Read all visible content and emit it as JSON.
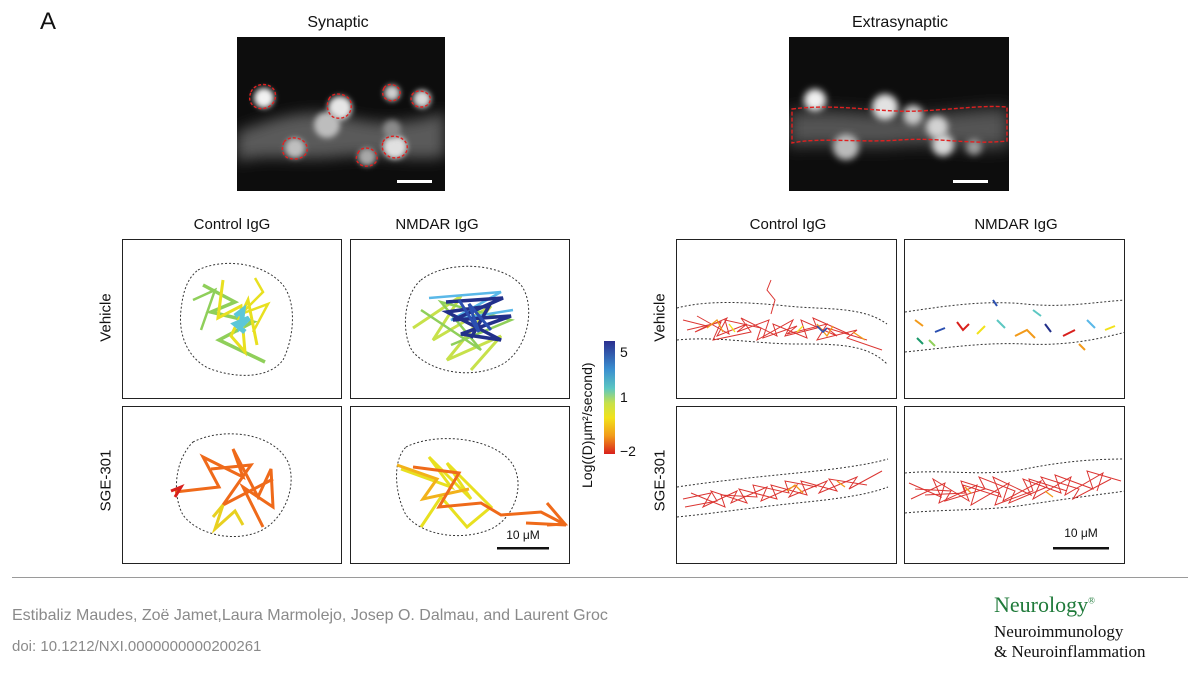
{
  "figure": {
    "panel_letter": "A",
    "sections": [
      {
        "title": "Synaptic"
      },
      {
        "title": "Extrasynaptic"
      }
    ],
    "col_labels": [
      "Control IgG",
      "NMDAR IgG"
    ],
    "row_labels": [
      "Vehicle",
      "SGE-301"
    ],
    "scalebar_label": "10 μM",
    "colorbar": {
      "label": "Log((D)μm²/second)",
      "ticks": [
        "5",
        "1",
        "−2"
      ],
      "colors": [
        "#2b2f8f",
        "#3a8fd0",
        "#5cc7c2",
        "#c7e14a",
        "#f2e21a",
        "#f29a1a",
        "#d8201c"
      ]
    }
  },
  "footer": {
    "authors": "Estibaliz Maudes, Zoë Jamet,Laura Marmolejo, Josep O. Dalmau, and Laurent Groc",
    "doi": "doi: 10.1212/NXI.0000000000200261",
    "logo_line1": "Neurology",
    "logo_mark": "®",
    "logo_line2": "Neuroimmunology",
    "logo_line3": "& Neuroinflammation"
  }
}
